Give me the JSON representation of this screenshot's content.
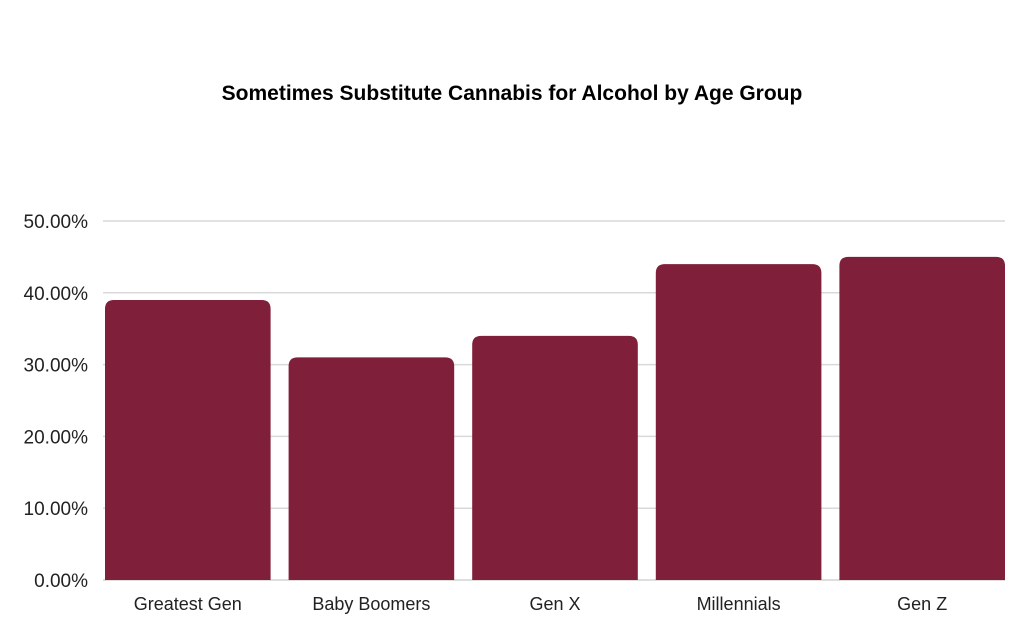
{
  "chart_data": {
    "type": "bar",
    "title": "Sometimes Substitute Cannabis for Alcohol by Age Group",
    "xlabel": "",
    "ylabel": "",
    "categories": [
      "Greatest Gen",
      "Baby Boomers",
      "Gen X",
      "Millennials",
      "Gen Z"
    ],
    "values": [
      39,
      31,
      34,
      44,
      45
    ],
    "value_unit": "%",
    "ylim": [
      0,
      50
    ],
    "yticks": [
      0,
      10,
      20,
      30,
      40,
      50
    ],
    "ytick_labels": [
      "0.00%",
      "10.00%",
      "20.00%",
      "30.00%",
      "40.00%",
      "50.00%"
    ],
    "grid": true,
    "legend": "none",
    "bar_color": "#7f1f3a",
    "grid_color": "#d9d9d9"
  }
}
